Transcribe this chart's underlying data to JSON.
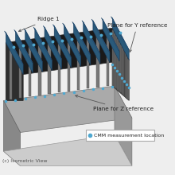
{
  "background_color": "#eeeeee",
  "label_ridge1": "Ridge 1",
  "label_plane_y": "Plane for Y reference",
  "label_plane_z": "Plane for Z reference",
  "label_isometric": "(c) Isometric View",
  "legend_label": "CMM measurement location",
  "legend_dot_color": "#4fa8d0",
  "dot_color": "#4fa8d0",
  "text_color": "#222222",
  "text_fontsize": 5.2,
  "body_top_color": "#1a1a1a",
  "body_left_color": "#2e2e2e",
  "body_right_color": "#4a4a4a",
  "base_top_color": "#aaaaaa",
  "base_front_color": "#888888",
  "base_side_color": "#999999",
  "fin_color": "#777777",
  "ridge_color": "#2a5a7a",
  "ridge_top_color": "#3a7aaa"
}
